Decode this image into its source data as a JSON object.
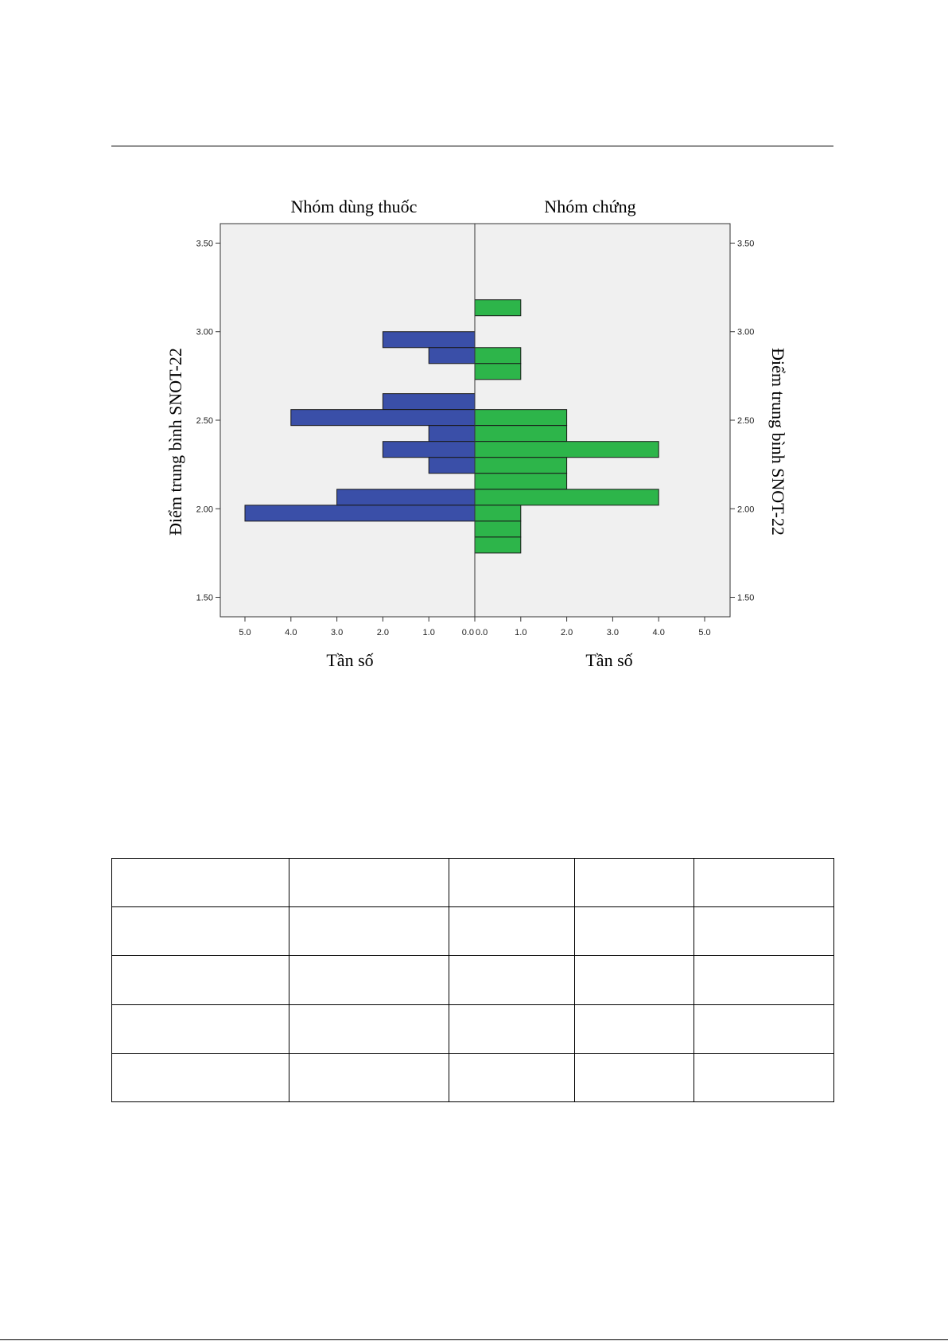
{
  "chart_data": {
    "type": "bar",
    "orientation": "horizontal",
    "layout": "population-pyramid",
    "groups": [
      "Nhóm dùng thuốc",
      "Nhóm chứng"
    ],
    "xlabel": "Tần số",
    "ylabel": "Điểm trung bình SNOT-22",
    "y_ticks": [
      "1.50",
      "2.00",
      "2.50",
      "3.00",
      "3.50"
    ],
    "x_ticks": [
      "5.0",
      "4.0",
      "3.0",
      "2.0",
      "1.0",
      "0.0",
      "1.0",
      "2.0",
      "3.0",
      "4.0",
      "5.0"
    ],
    "ylim": [
      1.39,
      3.61
    ],
    "xlim": [
      0,
      5.5
    ],
    "bin_width": 0.09,
    "series": [
      {
        "name": "Nhóm dùng thuốc",
        "color": "#3a4fa8",
        "bins": [
          {
            "y": 2.91,
            "value": 2
          },
          {
            "y": 2.82,
            "value": 1
          },
          {
            "y": 2.56,
            "value": 2
          },
          {
            "y": 2.47,
            "value": 4
          },
          {
            "y": 2.38,
            "value": 1
          },
          {
            "y": 2.29,
            "value": 2
          },
          {
            "y": 2.2,
            "value": 1
          },
          {
            "y": 2.02,
            "value": 3
          },
          {
            "y": 1.93,
            "value": 5
          }
        ]
      },
      {
        "name": "Nhóm chứng",
        "color": "#2db54a",
        "bins": [
          {
            "y": 3.09,
            "value": 1
          },
          {
            "y": 2.82,
            "value": 1
          },
          {
            "y": 2.73,
            "value": 1
          },
          {
            "y": 2.47,
            "value": 2
          },
          {
            "y": 2.38,
            "value": 2
          },
          {
            "y": 2.29,
            "value": 4
          },
          {
            "y": 2.2,
            "value": 2
          },
          {
            "y": 2.11,
            "value": 2
          },
          {
            "y": 2.02,
            "value": 4
          },
          {
            "y": 1.93,
            "value": 1
          },
          {
            "y": 1.84,
            "value": 1
          },
          {
            "y": 1.75,
            "value": 1
          }
        ]
      }
    ],
    "plot_background": "#f0f0f0",
    "grid": false,
    "legend": "none"
  },
  "table": {
    "rows": [
      [
        "",
        "",
        "",
        "",
        ""
      ],
      [
        "",
        "",
        "",
        "",
        ""
      ],
      [
        "",
        "",
        "",
        "",
        ""
      ],
      [
        "",
        "",
        "",
        "",
        ""
      ],
      [
        "",
        "",
        "",
        "",
        ""
      ]
    ]
  }
}
